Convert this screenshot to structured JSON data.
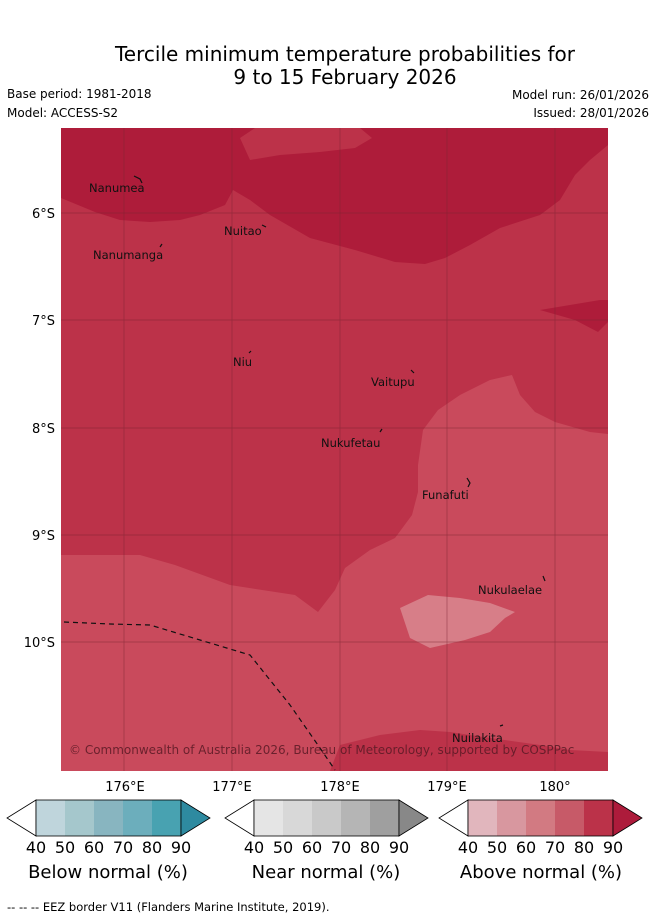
{
  "title": {
    "line1": "Tercile minimum temperature probabilities for",
    "line2": "9 to 15 February 2026"
  },
  "meta": {
    "base_period": "Base period: 1981-2018",
    "model": "Model: ACCESS-S2",
    "model_run": "Model run: 26/01/2026",
    "issued": "Issued: 28/01/2026"
  },
  "map": {
    "lat_labels": [
      "6°S",
      "7°S",
      "8°S",
      "9°S",
      "10°S"
    ],
    "lon_labels": [
      "176°E",
      "177°E",
      "178°E",
      "179°E",
      "180°"
    ],
    "places": [
      "Nanumea",
      "Nuitao",
      "Nanumanga",
      "Niu",
      "Vaitupu",
      "Nukufetau",
      "Funafuti",
      "Nukulaelae",
      "Nuilakita"
    ],
    "copyright": "© Commonwealth of Australia 2026, Bureau of Meteorology, supported by COSPPac",
    "colors": {
      "above_70": "#c94a5c",
      "above_80": "#bc3249",
      "above_90": "#ae1c3a",
      "above_60": "#d77e88"
    }
  },
  "colorbars": [
    {
      "label": "Below normal (%)",
      "ticks": [
        "40",
        "50",
        "60",
        "70",
        "80",
        "90"
      ],
      "colors": [
        "#bfd5dc",
        "#a5c7cc",
        "#88b5c0",
        "#6caebc",
        "#48a2b1",
        "#2e8aa0"
      ]
    },
    {
      "label": "Near normal (%)",
      "ticks": [
        "40",
        "50",
        "60",
        "70",
        "80",
        "90"
      ],
      "colors": [
        "#e5e5e5",
        "#d8d8d8",
        "#c9c9c9",
        "#b5b5b5",
        "#9f9f9f",
        "#888888"
      ]
    },
    {
      "label": "Above normal (%)",
      "ticks": [
        "40",
        "50",
        "60",
        "70",
        "80",
        "90"
      ],
      "colors": [
        "#e1b6bd",
        "#d8979f",
        "#d27a82",
        "#c75a68",
        "#bb3249",
        "#ad1b3b"
      ]
    }
  ],
  "footer": "-- -- -- EEZ border V11 (Flanders Marine Institute, 2019)."
}
